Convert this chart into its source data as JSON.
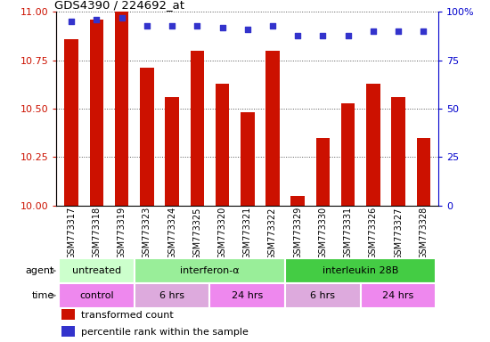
{
  "title": "GDS4390 / 224692_at",
  "samples": [
    "GSM773317",
    "GSM773318",
    "GSM773319",
    "GSM773323",
    "GSM773324",
    "GSM773325",
    "GSM773320",
    "GSM773321",
    "GSM773322",
    "GSM773329",
    "GSM773330",
    "GSM773331",
    "GSM773326",
    "GSM773327",
    "GSM773328"
  ],
  "bar_values": [
    10.86,
    10.96,
    11.0,
    10.71,
    10.56,
    10.8,
    10.63,
    10.48,
    10.8,
    10.05,
    10.35,
    10.53,
    10.63,
    10.56,
    10.35
  ],
  "percentile_values": [
    95,
    96,
    97,
    93,
    93,
    93,
    92,
    91,
    93,
    88,
    88,
    88,
    90,
    90,
    90
  ],
  "ymin": 10.0,
  "ymax": 11.0,
  "y2min": 0,
  "y2max": 100,
  "yticks": [
    10.0,
    10.25,
    10.5,
    10.75,
    11.0
  ],
  "y2ticks": [
    0,
    25,
    50,
    75,
    100
  ],
  "bar_color": "#cc1100",
  "dot_color": "#3333cc",
  "agent_groups": [
    {
      "label": "untreated",
      "start": 0,
      "end": 3,
      "color": "#ccffcc"
    },
    {
      "label": "interferon-α",
      "start": 3,
      "end": 9,
      "color": "#99ee99"
    },
    {
      "label": "interleukin 28B",
      "start": 9,
      "end": 15,
      "color": "#44cc44"
    }
  ],
  "time_groups": [
    {
      "label": "control",
      "start": 0,
      "end": 3,
      "color": "#ee88ee"
    },
    {
      "label": "6 hrs",
      "start": 3,
      "end": 6,
      "color": "#ddaadd"
    },
    {
      "label": "24 hrs",
      "start": 6,
      "end": 9,
      "color": "#ee88ee"
    },
    {
      "label": "6 hrs",
      "start": 9,
      "end": 12,
      "color": "#ddaadd"
    },
    {
      "label": "24 hrs",
      "start": 12,
      "end": 15,
      "color": "#ee88ee"
    }
  ],
  "legend_items": [
    {
      "color": "#cc1100",
      "label": "transformed count"
    },
    {
      "color": "#3333cc",
      "label": "percentile rank within the sample"
    }
  ],
  "bar_color_left": "#cc1100",
  "axis_color_right": "#0000cc",
  "bar_width": 0.55,
  "tick_label_fontsize": 7,
  "grid_color": "#000000"
}
